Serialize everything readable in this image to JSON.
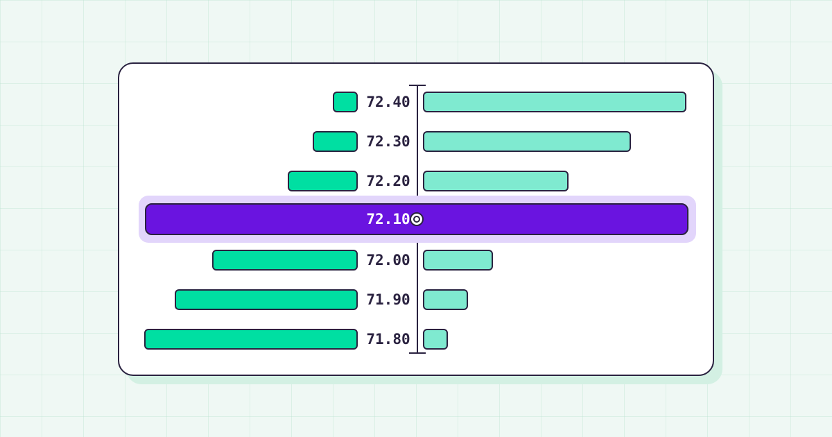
{
  "chart_data": {
    "type": "bar",
    "orientation": "horizontal",
    "layout": "diverging",
    "mid": {
      "price": "72.10"
    },
    "levels": [
      {
        "price": "72.40",
        "left": 1,
        "right": 10.5
      },
      {
        "price": "72.30",
        "left": 1.8,
        "right": 8.3
      },
      {
        "price": "72.20",
        "left": 2.8,
        "right": 5.8
      },
      {
        "price": "72.00",
        "left": 5.8,
        "right": 2.8
      },
      {
        "price": "71.90",
        "left": 7.3,
        "right": 1.8
      },
      {
        "price": "71.80",
        "left": 8.5,
        "right": 1
      }
    ],
    "series_colors": {
      "left": "#00dfa2",
      "right": "#7fead0",
      "mid": "#6a14e0"
    },
    "xlim": [
      0,
      10.5
    ]
  }
}
